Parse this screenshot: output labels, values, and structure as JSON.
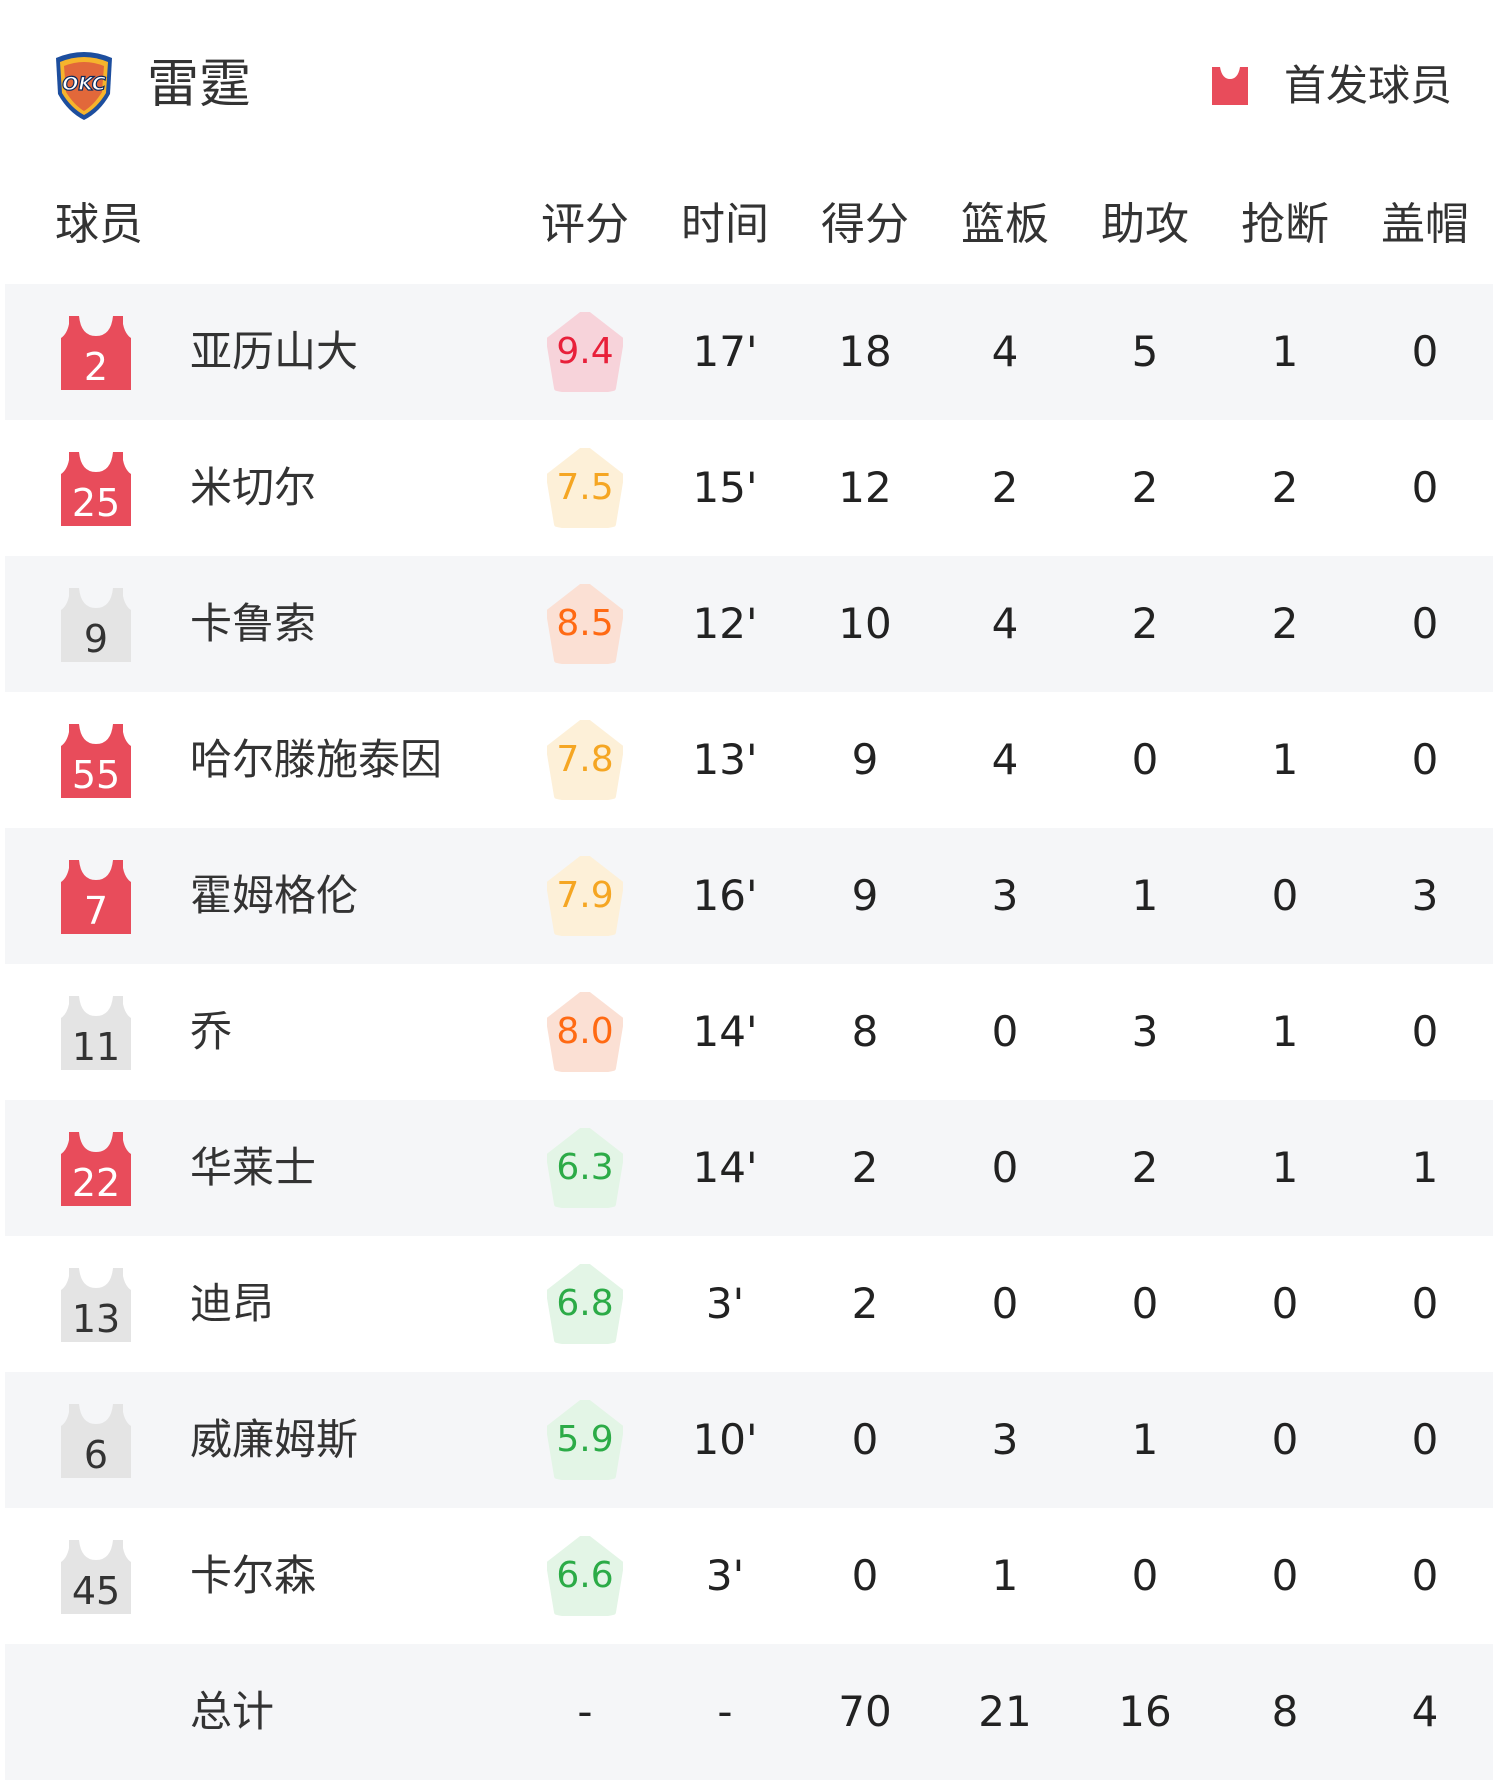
{
  "team": {
    "name": "雷霆",
    "logo_text": "OKC"
  },
  "legend": {
    "label": "首发球员",
    "color": "#e84c5b"
  },
  "colors": {
    "starter": "#e84c5b",
    "bench": "#e4e4e4",
    "row_alt": "#f5f6f8"
  },
  "headers": [
    "球员",
    "评分",
    "时间",
    "得分",
    "篮板",
    "助攻",
    "抢断",
    "盖帽"
  ],
  "players": [
    {
      "number": "2",
      "starter": true,
      "name": "亚历山大",
      "rating": "9.4",
      "tier": "red",
      "time": "17'",
      "pts": "18",
      "reb": "4",
      "ast": "5",
      "stl": "1",
      "blk": "0"
    },
    {
      "number": "25",
      "starter": true,
      "name": "米切尔",
      "rating": "7.5",
      "tier": "yellow",
      "time": "15'",
      "pts": "12",
      "reb": "2",
      "ast": "2",
      "stl": "2",
      "blk": "0"
    },
    {
      "number": "9",
      "starter": false,
      "name": "卡鲁索",
      "rating": "8.5",
      "tier": "orange",
      "time": "12'",
      "pts": "10",
      "reb": "4",
      "ast": "2",
      "stl": "2",
      "blk": "0"
    },
    {
      "number": "55",
      "starter": true,
      "name": "哈尔滕施泰因",
      "rating": "7.8",
      "tier": "yellow",
      "time": "13'",
      "pts": "9",
      "reb": "4",
      "ast": "0",
      "stl": "1",
      "blk": "0"
    },
    {
      "number": "7",
      "starter": true,
      "name": "霍姆格伦",
      "rating": "7.9",
      "tier": "yellow",
      "time": "16'",
      "pts": "9",
      "reb": "3",
      "ast": "1",
      "stl": "0",
      "blk": "3"
    },
    {
      "number": "11",
      "starter": false,
      "name": "乔",
      "rating": "8.0",
      "tier": "orange",
      "time": "14'",
      "pts": "8",
      "reb": "0",
      "ast": "3",
      "stl": "1",
      "blk": "0"
    },
    {
      "number": "22",
      "starter": true,
      "name": "华莱士",
      "rating": "6.3",
      "tier": "green",
      "time": "14'",
      "pts": "2",
      "reb": "0",
      "ast": "2",
      "stl": "1",
      "blk": "1"
    },
    {
      "number": "13",
      "starter": false,
      "name": "迪昂",
      "rating": "6.8",
      "tier": "green",
      "time": "3'",
      "pts": "2",
      "reb": "0",
      "ast": "0",
      "stl": "0",
      "blk": "0"
    },
    {
      "number": "6",
      "starter": false,
      "name": "威廉姆斯",
      "rating": "5.9",
      "tier": "green",
      "time": "10'",
      "pts": "0",
      "reb": "3",
      "ast": "1",
      "stl": "0",
      "blk": "0"
    },
    {
      "number": "45",
      "starter": false,
      "name": "卡尔森",
      "rating": "6.6",
      "tier": "green",
      "time": "3'",
      "pts": "0",
      "reb": "1",
      "ast": "0",
      "stl": "0",
      "blk": "0"
    }
  ],
  "rating_colors": {
    "red": {
      "text": "#e8203a",
      "bg": "#f7d3da"
    },
    "orange": {
      "text": "#ff6a13",
      "bg": "#fbe0d4"
    },
    "yellow": {
      "text": "#f5a623",
      "bg": "#fdf0d8"
    },
    "green": {
      "text": "#2cab47",
      "bg": "#e3f5e6"
    }
  },
  "total": {
    "label": "总计",
    "rating": "-",
    "time": "-",
    "pts": "70",
    "reb": "21",
    "ast": "16",
    "stl": "8",
    "blk": "4"
  }
}
